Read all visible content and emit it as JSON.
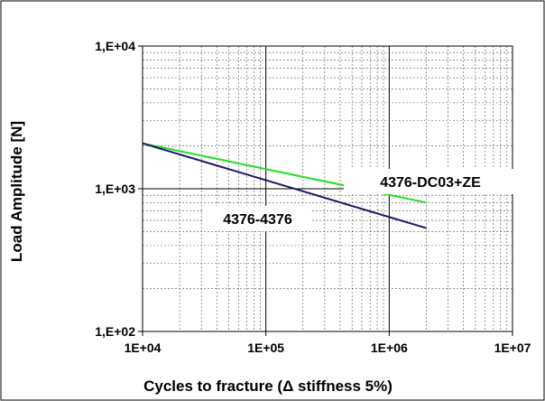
{
  "chart_data": {
    "type": "line",
    "title": "",
    "xlabel": "Cycles to fracture (Δ stiffness 5%)",
    "ylabel": "Load Amplitude [N]",
    "x_scale": "log",
    "y_scale": "log",
    "xlim": [
      10000,
      10000000
    ],
    "ylim": [
      100,
      10000
    ],
    "x_ticks": [
      {
        "value": 10000,
        "label": "1E+04"
      },
      {
        "value": 100000,
        "label": "1E+05"
      },
      {
        "value": 1000000,
        "label": "1E+06"
      },
      {
        "value": 10000000,
        "label": "1E+07"
      }
    ],
    "y_ticks": [
      {
        "value": 100,
        "label": "1,E+02"
      },
      {
        "value": 1000,
        "label": "1,E+03"
      },
      {
        "value": 10000,
        "label": "1,E+04"
      }
    ],
    "grid": true,
    "legend": "none",
    "series": [
      {
        "name": "4376-DC03+ZE",
        "color": "#22dd22",
        "x": [
          10000,
          2000000
        ],
        "y": [
          2080,
          800
        ]
      },
      {
        "name": "4376-4376",
        "color": "#1a1a66",
        "x": [
          10000,
          2000000
        ],
        "y": [
          2080,
          530
        ]
      }
    ]
  }
}
